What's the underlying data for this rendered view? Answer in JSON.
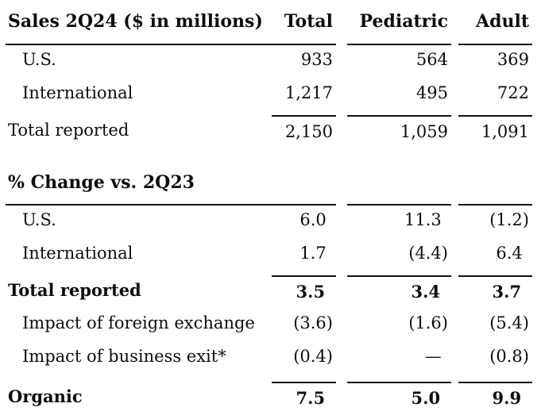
{
  "chart_data": {
    "type": "table",
    "columns": [
      "Total",
      "Pediatric",
      "Adult"
    ],
    "sections": [
      {
        "title": "Sales 2Q24 ($ in millions)",
        "show_columns": true,
        "paren_align": false,
        "rows": [
          {
            "label": "U.S.",
            "indent": true,
            "bold": false,
            "topline": false,
            "values": [
              "933",
              "564",
              "369"
            ]
          },
          {
            "label": "International",
            "indent": true,
            "bold": false,
            "topline": false,
            "values": [
              "1,217",
              "495",
              "722"
            ]
          },
          {
            "label": "Total reported",
            "indent": false,
            "bold": false,
            "topline": true,
            "values": [
              "2,150",
              "1,059",
              "1,091"
            ]
          }
        ]
      },
      {
        "title": "% Change vs. 2Q23",
        "show_columns": false,
        "paren_align": true,
        "rows": [
          {
            "label": "U.S.",
            "indent": true,
            "bold": false,
            "topline": false,
            "values": [
              "6.0",
              "11.3",
              "(1.2)"
            ]
          },
          {
            "label": "International",
            "indent": true,
            "bold": false,
            "topline": false,
            "values": [
              "1.7",
              "(4.4)",
              "6.4"
            ]
          },
          {
            "label": "Total reported",
            "indent": false,
            "bold": true,
            "topline": true,
            "values": [
              "3.5",
              "3.4",
              "3.7"
            ]
          },
          {
            "label": "Impact of foreign exchange",
            "indent": true,
            "bold": false,
            "topline": false,
            "values": [
              "(3.6)",
              "(1.6)",
              "(5.4)"
            ]
          },
          {
            "label": "Impact of business exit*",
            "indent": true,
            "bold": false,
            "topline": false,
            "values": [
              "(0.4)",
              "—",
              "(0.8)"
            ]
          },
          {
            "label": "Organic",
            "indent": false,
            "bold": true,
            "topline": true,
            "gap_above": true,
            "values": [
              "7.5",
              "5.0",
              "9.9"
            ]
          }
        ]
      }
    ],
    "colors": {
      "text": "#0d0d0d",
      "rule": "#111111",
      "background": "#ffffff"
    }
  }
}
